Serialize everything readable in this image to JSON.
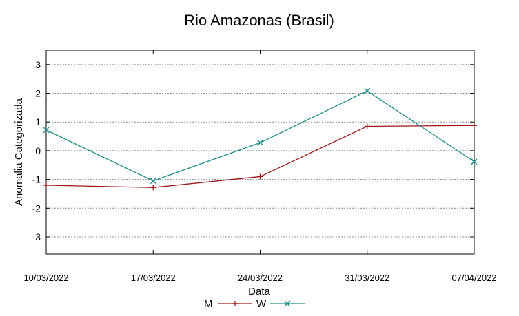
{
  "chart_data": {
    "type": "line",
    "title": "Rio Amazonas (Brasil)",
    "xlabel": "Data",
    "ylabel": "Anomalia Categorizada",
    "categories": [
      "10/03/2022",
      "17/03/2022",
      "24/03/2022",
      "31/03/2022",
      "07/04/2022"
    ],
    "ylim": [
      -3.6,
      3.5
    ],
    "yticks": [
      "-3",
      "-2",
      "-1",
      "0",
      "1",
      "2",
      "3"
    ],
    "grid": true,
    "legend_position": "bottom-center",
    "series": [
      {
        "name": "M",
        "color": "#a01818",
        "marker": "plus",
        "values": [
          -1.2,
          -1.28,
          -0.9,
          0.85,
          0.88
        ]
      },
      {
        "name": "W",
        "color": "#1a8a8a",
        "marker": "cross",
        "values": [
          0.72,
          -1.05,
          0.28,
          2.08,
          -0.38
        ]
      }
    ]
  }
}
